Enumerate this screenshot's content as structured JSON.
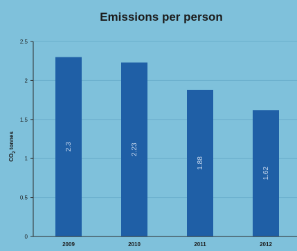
{
  "chart_data": {
    "type": "bar",
    "title": "Emissions per person",
    "xlabel": "",
    "ylabel": "CO2 tonnes",
    "ylabel_main": "CO",
    "ylabel_sub": "2",
    "ylabel_rest": " tonnes",
    "categories": [
      "2009",
      "2010",
      "2011",
      "2012"
    ],
    "values": [
      2.3,
      2.23,
      1.88,
      1.62
    ],
    "data_labels": [
      "2.3",
      "2.23",
      "1.88",
      "1.62"
    ],
    "ylim": [
      0,
      2.5
    ],
    "yticks": [
      "0",
      "0.5",
      "1",
      "1.5",
      "2",
      "2.5"
    ],
    "grid": true,
    "legend": "none",
    "colors": {
      "background": "#7fc1db",
      "bar": "#1f5fa6",
      "bar_label": "#c9d9ee",
      "grid": "#6aaecb",
      "axis": "#2b2b2b"
    }
  }
}
